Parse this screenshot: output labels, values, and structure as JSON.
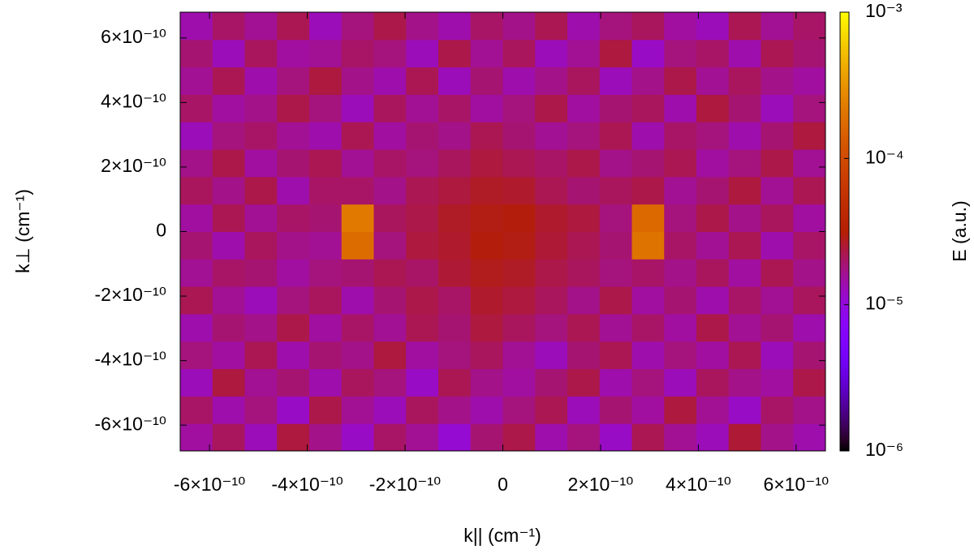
{
  "chart_data": {
    "type": "heatmap",
    "xlabel": "k|| (cm⁻¹)",
    "ylabel": "k⊥ (cm⁻¹)",
    "xlim": [
      -6.6e-10,
      6.6e-10
    ],
    "ylim": [
      -6.8e-10,
      6.8e-10
    ],
    "xticks": [
      {
        "value": -6e-10,
        "label": "-6×10⁻¹⁰"
      },
      {
        "value": -4e-10,
        "label": "-4×10⁻¹⁰"
      },
      {
        "value": -2e-10,
        "label": "-2×10⁻¹⁰"
      },
      0,
      {
        "value": 2e-10,
        "label": "2×10⁻¹⁰"
      },
      {
        "value": 4e-10,
        "label": "4×10⁻¹⁰"
      },
      {
        "value": 6e-10,
        "label": "6×10⁻¹⁰"
      }
    ],
    "yticks": [
      {
        "value": -6e-10,
        "label": "-6×10⁻¹⁰"
      },
      {
        "value": -4e-10,
        "label": "-4×10⁻¹⁰"
      },
      {
        "value": -2e-10,
        "label": "-2×10⁻¹⁰"
      },
      0,
      {
        "value": 2e-10,
        "label": "2×10⁻¹⁰"
      },
      {
        "value": 4e-10,
        "label": "4×10⁻¹⁰"
      },
      {
        "value": 6e-10,
        "label": "6×10⁻¹⁰"
      }
    ],
    "x": [
      -6.27e-10,
      -5.61e-10,
      -4.95e-10,
      -4.29e-10,
      -3.63e-10,
      -2.97e-10,
      -2.31e-10,
      -1.65e-10,
      -9.9e-11,
      -3.3e-11,
      3.3e-11,
      9.9e-11,
      1.65e-10,
      2.31e-10,
      2.97e-10,
      3.63e-10,
      4.29e-10,
      4.95e-10,
      5.61e-10,
      6.27e-10
    ],
    "y": [
      -6.375e-10,
      -5.525e-10,
      -4.675e-10,
      -3.825e-10,
      -2.975e-10,
      -2.125e-10,
      -1.275e-10,
      -4.25e-11,
      4.25e-11,
      1.275e-10,
      2.125e-10,
      2.975e-10,
      3.825e-10,
      4.675e-10,
      5.525e-10,
      6.375e-10
    ],
    "z": [
      [
        1.5e-05,
        2.1e-05,
        1.3e-05,
        2.4e-05,
        1.7e-05,
        1.2e-05,
        2e-05,
        1.6e-05,
        1.1e-05,
        1.9e-05,
        2.3e-05,
        1.4e-05,
        1.8e-05,
        1.2e-05,
        2.2e-05,
        1.6e-05,
        1.3e-05,
        2.5e-05,
        1.7e-05,
        1.4e-05
      ],
      [
        2e-05,
        1.4e-05,
        1.8e-05,
        1.2e-05,
        2.3e-05,
        1.6e-05,
        1.3e-05,
        2.1e-05,
        1.7e-05,
        1.4e-05,
        1.8e-05,
        2.2e-05,
        1.3e-05,
        1.9e-05,
        1.5e-05,
        2.4e-05,
        1.6e-05,
        1.2e-05,
        2e-05,
        1.7e-05
      ],
      [
        1.3e-05,
        2.4e-05,
        1.6e-05,
        1.9e-05,
        1.4e-05,
        2.1e-05,
        1.8e-05,
        1.2e-05,
        2.2e-05,
        1.7e-05,
        1.5e-05,
        1.9e-05,
        2.3e-05,
        1.4e-05,
        1.8e-05,
        1.3e-05,
        2.1e-05,
        1.7e-05,
        1.5e-05,
        2.3e-05
      ],
      [
        1.8e-05,
        1.5e-05,
        2.2e-05,
        1.4e-05,
        1.9e-05,
        1.7e-05,
        2.4e-05,
        1.5e-05,
        1.8e-05,
        2.1e-05,
        1.6e-05,
        1.3e-05,
        1.9e-05,
        2.2e-05,
        1.4e-05,
        1.8e-05,
        1.5e-05,
        2.2e-05,
        1.3e-05,
        1.9e-05
      ],
      [
        1.4e-05,
        1.9e-05,
        1.7e-05,
        2.3e-05,
        1.5e-05,
        2e-05,
        1.6e-05,
        2.2e-05,
        1.9e-05,
        2.4e-05,
        2.1e-05,
        1.8e-05,
        2.2e-05,
        1.6e-05,
        2e-05,
        1.5e-05,
        2.3e-05,
        1.6e-05,
        1.9e-05,
        1.4e-05
      ],
      [
        2.2e-05,
        1.6e-05,
        1.3e-05,
        1.8e-05,
        2.1e-05,
        1.4e-05,
        1.9e-05,
        2.3e-05,
        2e-05,
        2.6e-05,
        2.4e-05,
        2.1e-05,
        1.7e-05,
        2.3e-05,
        1.5e-05,
        1.9e-05,
        1.4e-05,
        2e-05,
        1.6e-05,
        2.1e-05
      ],
      [
        1.6e-05,
        2e-05,
        1.9e-05,
        1.5e-05,
        1.8e-05,
        1.9e-05,
        2.2e-05,
        2e-05,
        2.5e-05,
        2.8e-05,
        2.7e-05,
        2.3e-05,
        2.1e-05,
        1.8e-05,
        2e-05,
        1.7e-05,
        2.1e-05,
        1.5e-05,
        2.2e-05,
        1.7e-05
      ],
      [
        1.9e-05,
        1.4e-05,
        2.1e-05,
        1.7e-05,
        1.6e-05,
        0.00018,
        1.8e-05,
        2.4e-05,
        2.6e-05,
        3e-05,
        2.9e-05,
        2.5e-05,
        2.2e-05,
        1.9e-05,
        0.0002,
        2e-05,
        1.6e-05,
        2.2e-05,
        1.4e-05,
        2e-05
      ],
      [
        1.5e-05,
        2.2e-05,
        1.6e-05,
        2e-05,
        1.9e-05,
        0.00022,
        2.1e-05,
        2.3e-05,
        2.7e-05,
        2.9e-05,
        3e-05,
        2.6e-05,
        2.4e-05,
        1.8e-05,
        0.00017,
        1.8e-05,
        2.3e-05,
        1.7e-05,
        2.1e-05,
        1.5e-05
      ],
      [
        2.1e-05,
        1.7e-05,
        2.3e-05,
        1.4e-05,
        2e-05,
        2e-05,
        1.7e-05,
        2.2e-05,
        2.4e-05,
        2.7e-05,
        2.6e-05,
        2.2e-05,
        1.9e-05,
        2.1e-05,
        2.3e-05,
        1.6e-05,
        1.9e-05,
        2.4e-05,
        1.6e-05,
        2.2e-05
      ],
      [
        1.7e-05,
        2.3e-05,
        1.5e-05,
        1.9e-05,
        2.2e-05,
        1.6e-05,
        2e-05,
        1.8e-05,
        2.1e-05,
        2.4e-05,
        2.2e-05,
        2e-05,
        2.3e-05,
        1.7e-05,
        1.9e-05,
        2.2e-05,
        1.5e-05,
        1.8e-05,
        2.3e-05,
        1.6e-05
      ],
      [
        1.3e-05,
        1.8e-05,
        2e-05,
        1.6e-05,
        1.4e-05,
        2.2e-05,
        1.5e-05,
        1.9e-05,
        1.7e-05,
        2.2e-05,
        1.9e-05,
        1.6e-05,
        1.8e-05,
        2.2e-05,
        1.4e-05,
        2e-05,
        1.8e-05,
        1.4e-05,
        1.9e-05,
        2.4e-05
      ],
      [
        2e-05,
        1.5e-05,
        1.7e-05,
        2.3e-05,
        1.8e-05,
        1.3e-05,
        2.1e-05,
        1.6e-05,
        2e-05,
        1.5e-05,
        1.8e-05,
        2.3e-05,
        1.5e-05,
        1.9e-05,
        2.1e-05,
        1.4e-05,
        2.4e-05,
        1.9e-05,
        1.3e-05,
        1.8e-05
      ],
      [
        1.6e-05,
        2.2e-05,
        1.4e-05,
        1.8e-05,
        2.4e-05,
        1.7e-05,
        1.4e-05,
        2.2e-05,
        1.3e-05,
        1.9e-05,
        1.4e-05,
        1.7e-05,
        2.1e-05,
        1.3e-05,
        1.7e-05,
        2.3e-05,
        1.6e-05,
        2.1e-05,
        1.7e-05,
        1.5e-05
      ],
      [
        1.9e-05,
        1.3e-05,
        2.1e-05,
        1.5e-05,
        1.6e-05,
        2e-05,
        1.8e-05,
        1.3e-05,
        2.3e-05,
        1.6e-05,
        2.1e-05,
        1.3e-05,
        1.6e-05,
        2.4e-05,
        1.2e-05,
        1.8e-05,
        2e-05,
        1.4e-05,
        2.2e-05,
        1.9e-05
      ],
      [
        1.4e-05,
        2e-05,
        1.6e-05,
        2.2e-05,
        1.3e-05,
        1.8e-05,
        2.3e-05,
        1.7e-05,
        1.4e-05,
        2e-05,
        1.7e-05,
        2.2e-05,
        1.4e-05,
        1.8e-05,
        2.1e-05,
        1.5e-05,
        1.3e-05,
        2.2e-05,
        1.6e-05,
        2e-05
      ]
    ],
    "colorbar": {
      "label": "E (a.u.)",
      "log": true,
      "zlim": [
        1e-06,
        0.001
      ],
      "zticks": [
        {
          "value": 1e-06,
          "label": "10⁻⁶"
        },
        {
          "value": 1e-05,
          "label": "10⁻⁵"
        },
        {
          "value": 0.0001,
          "label": "10⁻⁴"
        },
        {
          "value": 0.001,
          "label": "10⁻³"
        }
      ]
    }
  }
}
